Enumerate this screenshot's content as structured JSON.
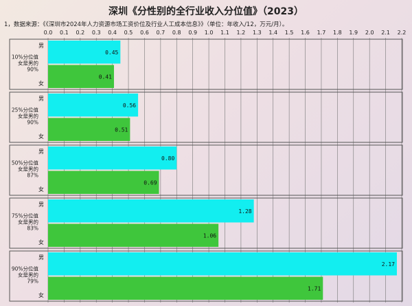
{
  "title": "深圳《分性别的全行业收入分位值》（2023）",
  "note": "1，数据来源：《《深圳市2024年人力资源市场工资价位及行业人工成本信息》》（单位：年收入/12，万元/月）。",
  "colors": {
    "male": "#12eef0",
    "female": "#3fc63c",
    "grid": "#777777",
    "panel": "#555555"
  },
  "chart_data": {
    "type": "bar",
    "orientation": "horizontal",
    "xlim": [
      0,
      2.2
    ],
    "xticks": [
      "0.0",
      "0.1",
      "0.2",
      "0.3",
      "0.4",
      "0.5",
      "0.6",
      "0.7",
      "0.8",
      "0.9",
      "1.0",
      "1.1",
      "1.2",
      "1.3",
      "1.4",
      "1.5",
      "1.6",
      "1.7",
      "1.8",
      "1.9",
      "2.0",
      "2.1",
      "2.2"
    ],
    "grid": true,
    "groups": [
      {
        "label": [
          "10%分位值",
          "女是男的",
          "90%"
        ],
        "male_label": "男",
        "female_label": "女",
        "male": 0.45,
        "female": 0.41,
        "male_text": "0.45",
        "female_text": "0.41"
      },
      {
        "label": [
          "25%分位值",
          "女是男的",
          "90%"
        ],
        "male_label": "男",
        "female_label": "女",
        "male": 0.56,
        "female": 0.51,
        "male_text": "0.56",
        "female_text": "0.51"
      },
      {
        "label": [
          "50%分位值",
          "女是男的",
          "87%"
        ],
        "male_label": "男",
        "female_label": "女",
        "male": 0.8,
        "female": 0.69,
        "male_text": "0.80",
        "female_text": "0.69"
      },
      {
        "label": [
          "75%分位值",
          "女是男的",
          "83%"
        ],
        "male_label": "男",
        "female_label": "女",
        "male": 1.28,
        "female": 1.06,
        "male_text": "1.28",
        "female_text": "1.06"
      },
      {
        "label": [
          "90%分位值",
          "女是男的",
          "79%"
        ],
        "male_label": "男",
        "female_label": "女",
        "male": 2.17,
        "female": 1.71,
        "male_text": "2.17",
        "female_text": "1.71"
      }
    ]
  }
}
